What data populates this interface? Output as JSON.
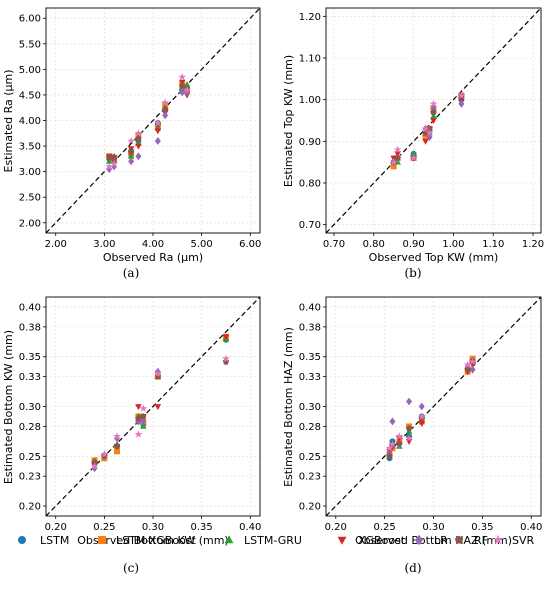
{
  "legend": [
    {
      "name": "LSTM",
      "color": "#1f77b4",
      "marker": "circle"
    },
    {
      "name": "LSTM-XGBoost",
      "color": "#ff7f0e",
      "marker": "square"
    },
    {
      "name": "LSTM-GRU",
      "color": "#2ca02c",
      "marker": "triangle-up"
    },
    {
      "name": "XGBoost",
      "color": "#d62728",
      "marker": "triangle-down"
    },
    {
      "name": "LR",
      "color": "#9467bd",
      "marker": "diamond"
    },
    {
      "name": "RF",
      "color": "#8c564b",
      "marker": "pentagon"
    },
    {
      "name": "SVR",
      "color": "#e377c2",
      "marker": "star"
    }
  ],
  "chart_data": [
    {
      "type": "scatter",
      "panel_label": "(a)",
      "xlabel": "Observed Ra (μm)",
      "ylabel": "Estimated Ra (μm)",
      "xlim": [
        1.8,
        6.2
      ],
      "ylim": [
        1.8,
        6.2
      ],
      "xticks": [
        "2.00",
        "3.00",
        "4.00",
        "5.00",
        "6.00"
      ],
      "yticks": [
        "2.00",
        "2.50",
        "3.00",
        "3.50",
        "4.00",
        "4.50",
        "5.00",
        "5.50",
        "6.00"
      ],
      "reference_line": "y = x",
      "grid": true,
      "series": [
        {
          "name": "LSTM",
          "x": [
            3.1,
            3.2,
            3.55,
            3.7,
            4.1,
            4.25,
            4.6,
            4.7
          ],
          "y": [
            3.25,
            3.2,
            3.4,
            3.6,
            3.95,
            4.2,
            4.6,
            4.55
          ]
        },
        {
          "name": "LSTM-XGBoost",
          "x": [
            3.1,
            3.2,
            3.55,
            3.7,
            4.1,
            4.25,
            4.6,
            4.7
          ],
          "y": [
            3.3,
            3.25,
            3.35,
            3.7,
            3.9,
            4.3,
            4.7,
            4.6
          ]
        },
        {
          "name": "LSTM-GRU",
          "x": [
            3.1,
            3.2,
            3.55,
            3.7,
            4.1,
            4.25,
            4.6,
            4.7
          ],
          "y": [
            3.2,
            3.3,
            3.3,
            3.55,
            3.85,
            4.25,
            4.65,
            4.7
          ]
        },
        {
          "name": "XGBoost",
          "x": [
            3.1,
            3.2,
            3.55,
            3.7,
            4.1,
            4.25,
            4.6,
            4.7
          ],
          "y": [
            3.3,
            3.28,
            3.45,
            3.5,
            3.8,
            4.15,
            4.75,
            4.5
          ]
        },
        {
          "name": "LR",
          "x": [
            3.1,
            3.2,
            3.55,
            3.7,
            4.1,
            4.25,
            4.6,
            4.7
          ],
          "y": [
            3.05,
            3.1,
            3.2,
            3.3,
            3.6,
            4.1,
            4.55,
            4.55
          ]
        },
        {
          "name": "RF",
          "x": [
            3.1,
            3.2,
            3.55,
            3.7,
            4.1,
            4.25,
            4.6,
            4.7
          ],
          "y": [
            3.28,
            3.25,
            3.38,
            3.65,
            3.92,
            4.22,
            4.68,
            4.62
          ]
        },
        {
          "name": "SVR",
          "x": [
            3.1,
            3.2,
            3.55,
            3.7,
            4.1,
            4.25,
            4.6,
            4.7
          ],
          "y": [
            3.1,
            3.15,
            3.6,
            3.75,
            3.95,
            4.35,
            4.85,
            4.6
          ]
        }
      ]
    },
    {
      "type": "scatter",
      "panel_label": "(b)",
      "xlabel": "Observed Top KW (mm)",
      "ylabel": "Estimated Top KW (mm)",
      "xlim": [
        0.68,
        1.22
      ],
      "ylim": [
        0.68,
        1.22
      ],
      "xticks": [
        "0.70",
        "0.80",
        "0.90",
        "1.00",
        "1.10",
        "1.20"
      ],
      "yticks": [
        "0.70",
        "0.80",
        "0.90",
        "1.00",
        "1.10",
        "1.20"
      ],
      "reference_line": "y = x",
      "grid": true,
      "series": [
        {
          "name": "LSTM",
          "x": [
            0.85,
            0.86,
            0.9,
            0.93,
            0.94,
            0.95,
            1.02
          ],
          "y": [
            0.85,
            0.86,
            0.87,
            0.92,
            0.93,
            0.97,
            1.0
          ]
        },
        {
          "name": "LSTM-XGBoost",
          "x": [
            0.85,
            0.86,
            0.9,
            0.93,
            0.94,
            0.95,
            1.02
          ],
          "y": [
            0.84,
            0.86,
            0.86,
            0.91,
            0.93,
            0.98,
            1.01
          ]
        },
        {
          "name": "LSTM-GRU",
          "x": [
            0.85,
            0.86,
            0.9,
            0.93,
            0.94,
            0.95,
            1.02
          ],
          "y": [
            0.85,
            0.85,
            0.87,
            0.92,
            0.92,
            0.96,
            1.01
          ]
        },
        {
          "name": "XGBoost",
          "x": [
            0.85,
            0.86,
            0.9,
            0.93,
            0.94,
            0.95,
            1.02
          ],
          "y": [
            0.86,
            0.87,
            0.86,
            0.9,
            0.93,
            0.95,
            1.0
          ]
        },
        {
          "name": "LR",
          "x": [
            0.85,
            0.86,
            0.9,
            0.93,
            0.94,
            0.95,
            1.02
          ],
          "y": [
            0.85,
            0.86,
            0.86,
            0.93,
            0.91,
            0.98,
            0.99
          ]
        },
        {
          "name": "RF",
          "x": [
            0.85,
            0.86,
            0.9,
            0.93,
            0.94,
            0.95,
            1.02
          ],
          "y": [
            0.85,
            0.86,
            0.86,
            0.92,
            0.93,
            0.97,
            1.01
          ]
        },
        {
          "name": "SVR",
          "x": [
            0.85,
            0.86,
            0.9,
            0.93,
            0.94,
            0.95,
            1.02
          ],
          "y": [
            0.85,
            0.88,
            0.86,
            0.93,
            0.92,
            0.99,
            1.01
          ]
        }
      ]
    },
    {
      "type": "scatter",
      "panel_label": "(c)",
      "xlabel": "Observed Bottom KW (mm)",
      "ylabel": "Estimated Bottom KW (mm)",
      "xlim": [
        0.19,
        0.41
      ],
      "ylim": [
        0.19,
        0.41
      ],
      "xticks": [
        "0.20",
        "0.25",
        "0.30",
        "0.35",
        "0.40"
      ],
      "yticks": [
        "0.20",
        "0.23",
        "0.25",
        "0.28",
        "0.30",
        "0.33",
        "0.35",
        "0.38",
        "0.40"
      ],
      "reference_line": "y = x",
      "grid": true,
      "series": [
        {
          "name": "LSTM",
          "x": [
            0.24,
            0.25,
            0.263,
            0.285,
            0.29,
            0.305,
            0.375
          ],
          "y": [
            0.243,
            0.25,
            0.26,
            0.285,
            0.282,
            0.33,
            0.367
          ]
        },
        {
          "name": "LSTM-XGBoost",
          "x": [
            0.24,
            0.25,
            0.263,
            0.285,
            0.29,
            0.305,
            0.375
          ],
          "y": [
            0.246,
            0.248,
            0.255,
            0.29,
            0.285,
            0.33,
            0.37
          ]
        },
        {
          "name": "LSTM-GRU",
          "x": [
            0.24,
            0.25,
            0.263,
            0.285,
            0.29,
            0.305,
            0.375
          ],
          "y": [
            0.245,
            0.252,
            0.262,
            0.29,
            0.28,
            0.33,
            0.368
          ]
        },
        {
          "name": "XGBoost",
          "x": [
            0.24,
            0.25,
            0.263,
            0.285,
            0.29,
            0.305,
            0.375
          ],
          "y": [
            0.242,
            0.25,
            0.26,
            0.3,
            0.29,
            0.3,
            0.37
          ]
        },
        {
          "name": "LR",
          "x": [
            0.24,
            0.25,
            0.263,
            0.285,
            0.29,
            0.305,
            0.375
          ],
          "y": [
            0.238,
            0.25,
            0.268,
            0.285,
            0.285,
            0.335,
            0.345
          ]
        },
        {
          "name": "RF",
          "x": [
            0.24,
            0.25,
            0.263,
            0.285,
            0.29,
            0.305,
            0.375
          ],
          "y": [
            0.244,
            0.25,
            0.26,
            0.288,
            0.29,
            0.33,
            0.345
          ]
        },
        {
          "name": "SVR",
          "x": [
            0.24,
            0.25,
            0.263,
            0.285,
            0.29,
            0.305,
            0.375
          ],
          "y": [
            0.24,
            0.252,
            0.27,
            0.272,
            0.298,
            0.333,
            0.348
          ]
        }
      ]
    },
    {
      "type": "scatter",
      "panel_label": "(d)",
      "xlabel": "Observed Bottom HAZ (mm)",
      "ylabel": "Estimated Bottom HAZ (mm)",
      "xlim": [
        0.19,
        0.41
      ],
      "ylim": [
        0.19,
        0.41
      ],
      "xticks": [
        "0.20",
        "0.25",
        "0.30",
        "0.35",
        "0.40"
      ],
      "yticks": [
        "0.20",
        "0.23",
        "0.25",
        "0.28",
        "0.30",
        "0.33",
        "0.35",
        "0.38",
        "0.40"
      ],
      "reference_line": "y = x",
      "grid": true,
      "series": [
        {
          "name": "LSTM",
          "x": [
            0.255,
            0.258,
            0.265,
            0.275,
            0.288,
            0.335,
            0.34
          ],
          "y": [
            0.248,
            0.265,
            0.263,
            0.27,
            0.29,
            0.338,
            0.345
          ]
        },
        {
          "name": "LSTM-XGBoost",
          "x": [
            0.255,
            0.258,
            0.265,
            0.275,
            0.288,
            0.335,
            0.34
          ],
          "y": [
            0.252,
            0.258,
            0.265,
            0.28,
            0.285,
            0.335,
            0.348
          ]
        },
        {
          "name": "LSTM-GRU",
          "x": [
            0.255,
            0.258,
            0.265,
            0.275,
            0.288,
            0.335,
            0.34
          ],
          "y": [
            0.254,
            0.262,
            0.26,
            0.275,
            0.29,
            0.34,
            0.345
          ]
        },
        {
          "name": "XGBoost",
          "x": [
            0.255,
            0.258,
            0.265,
            0.275,
            0.288,
            0.335,
            0.34
          ],
          "y": [
            0.255,
            0.26,
            0.268,
            0.265,
            0.283,
            0.335,
            0.342
          ]
        },
        {
          "name": "LR",
          "x": [
            0.255,
            0.258,
            0.265,
            0.275,
            0.288,
            0.335,
            0.34
          ],
          "y": [
            0.252,
            0.285,
            0.262,
            0.305,
            0.3,
            0.34,
            0.337
          ]
        },
        {
          "name": "RF",
          "x": [
            0.255,
            0.258,
            0.265,
            0.275,
            0.288,
            0.335,
            0.34
          ],
          "y": [
            0.25,
            0.26,
            0.263,
            0.278,
            0.288,
            0.337,
            0.346
          ]
        },
        {
          "name": "SVR",
          "x": [
            0.255,
            0.258,
            0.265,
            0.275,
            0.288,
            0.335,
            0.34
          ],
          "y": [
            0.258,
            0.262,
            0.27,
            0.268,
            0.29,
            0.342,
            0.345
          ]
        }
      ]
    }
  ]
}
